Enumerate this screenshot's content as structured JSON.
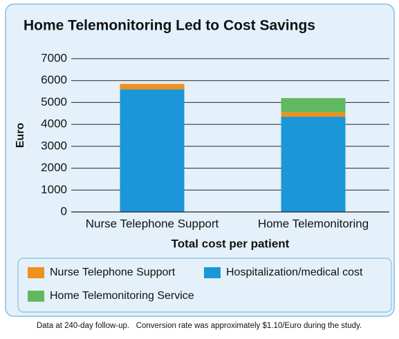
{
  "chart_data": {
    "type": "stacked_bar",
    "title": "Home Telemonitoring Led to Cost Savings",
    "y_label": "Euro",
    "x_label": "Total cost per patient",
    "categories": [
      "Nurse Telephone Support",
      "Home Telemonitoring"
    ],
    "series": [
      {
        "name": "Hospitalization/medical cost",
        "color": "#1b96d8",
        "values": [
          5600,
          4350
        ]
      },
      {
        "name": "Nurse Telephone Support",
        "color": "#f0901e",
        "values": [
          250,
          200
        ]
      },
      {
        "name": "Home Telemonitoring Service",
        "color": "#62b85e",
        "values": [
          null,
          650
        ]
      }
    ],
    "ylim": [
      0,
      7000
    ],
    "yticks": [
      0,
      1000,
      2000,
      3000,
      4000,
      5000,
      6000,
      7000
    ],
    "grid": true,
    "footnote": "Data at 240-day follow-up.   Conversion rate was approximately $1.10/Euro during the study."
  }
}
